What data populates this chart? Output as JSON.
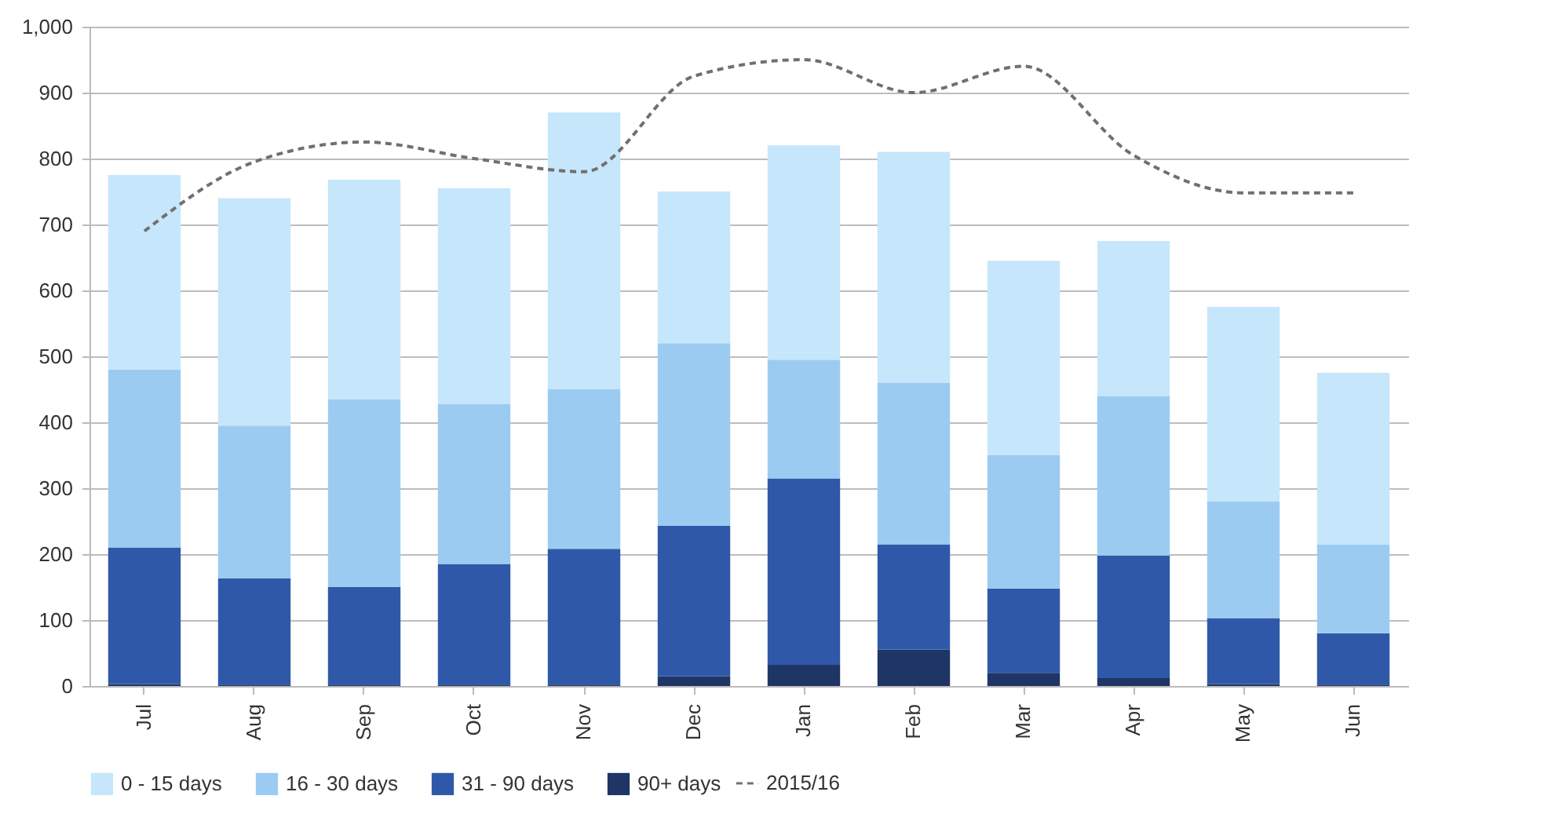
{
  "chart_data": {
    "type": "bar",
    "stacked": true,
    "categories": [
      "Jul",
      "Aug",
      "Sep",
      "Oct",
      "Nov",
      "Dec",
      "Jan",
      "Feb",
      "Mar",
      "Apr",
      "May",
      "Jun"
    ],
    "series": [
      {
        "name": "90+ days",
        "color": "#1e3566",
        "values": [
          3,
          2,
          2,
          2,
          2,
          15,
          32,
          55,
          20,
          12,
          3,
          2
        ]
      },
      {
        "name": "31 - 90 days",
        "color": "#2f59a8",
        "values": [
          207,
          161,
          148,
          183,
          206,
          228,
          283,
          160,
          128,
          186,
          100,
          78
        ]
      },
      {
        "name": "16 - 30 days",
        "color": "#9ccbf2",
        "values": [
          270,
          232,
          285,
          243,
          242,
          277,
          180,
          245,
          202,
          242,
          177,
          135
        ]
      },
      {
        "name": "0 - 15 days",
        "color": "#c6e6fb",
        "values": [
          295,
          345,
          333,
          327,
          420,
          230,
          325,
          350,
          295,
          235,
          295,
          260
        ]
      },
      {
        "name": "2015/16",
        "type": "line",
        "color": "#707070",
        "line_style": "dashed",
        "values": [
          690,
          795,
          825,
          800,
          780,
          925,
          950,
          900,
          940,
          805,
          748,
          748
        ]
      }
    ],
    "ylim": [
      0,
      1000
    ],
    "yticks": [
      0,
      100,
      200,
      300,
      400,
      500,
      600,
      700,
      800,
      900,
      {
        "value": 1000,
        "label": "1,000"
      }
    ],
    "grid": "y",
    "legend": "bottom"
  }
}
